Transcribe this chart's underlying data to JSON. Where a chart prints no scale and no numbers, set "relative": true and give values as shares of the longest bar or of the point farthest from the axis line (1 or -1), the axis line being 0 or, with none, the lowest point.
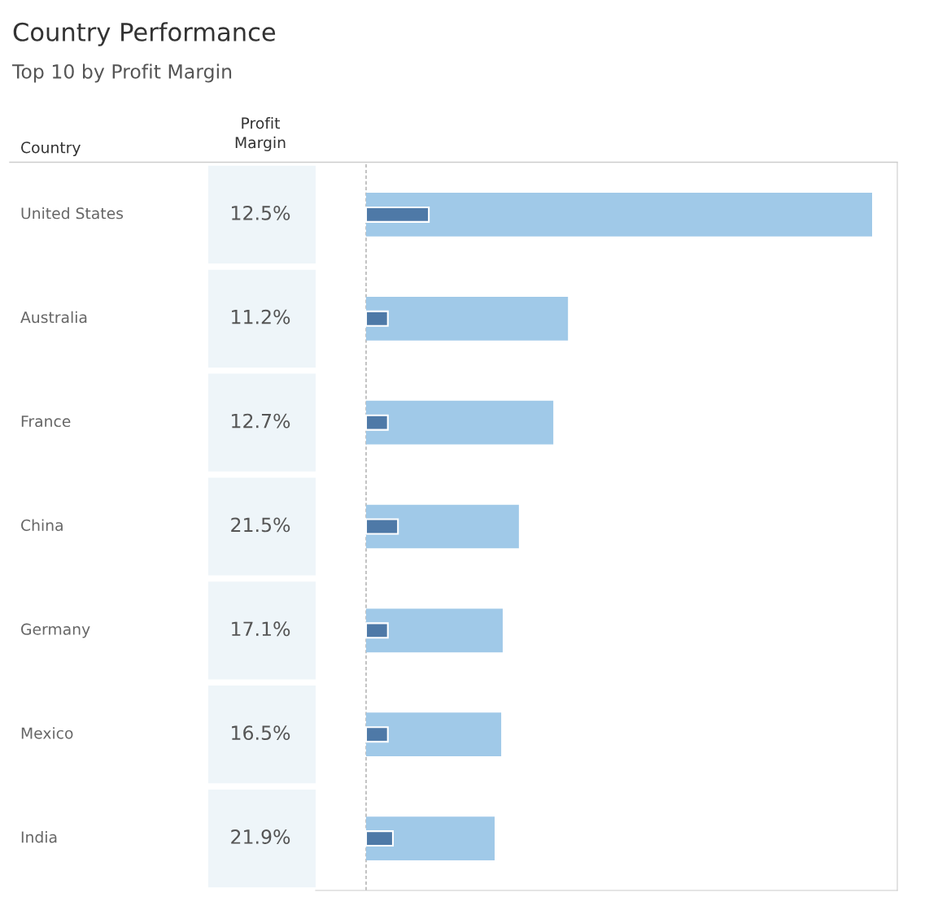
{
  "chart_data": {
    "type": "bar",
    "orientation": "horizontal",
    "relative": true,
    "title": "Country Performance",
    "subtitle": "Top 10 by Profit Margin",
    "ylabel": "Country",
    "categories": [
      "United States",
      "Australia",
      "France",
      "China",
      "Germany",
      "Mexico",
      "India"
    ],
    "series": [
      {
        "color": "#a0c9e8",
        "values": [
          1,
          0.399,
          0.37,
          0.302,
          0.27,
          0.267,
          0.254
        ]
      },
      {
        "color": "#4e79a7",
        "values": [
          0.124,
          0.043,
          0.043,
          0.063,
          0.043,
          0.043,
          0.053
        ]
      }
    ],
    "annotations": [
      "Profit\nMargin",
      "12.5%",
      "11.2%",
      "12.7%",
      "21.5%",
      "17.1%",
      "16.5%",
      "21.9%"
    ]
  }
}
